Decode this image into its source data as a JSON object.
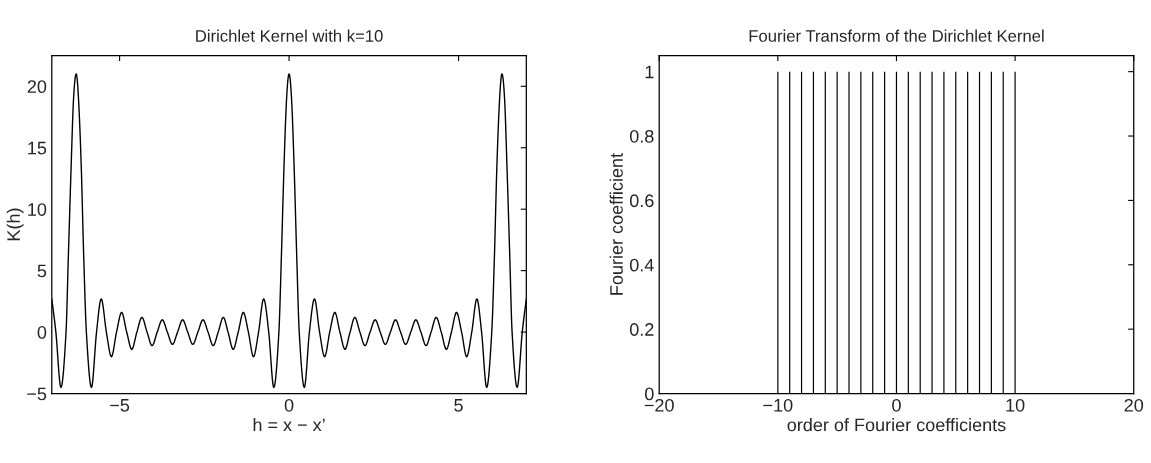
{
  "chart_data": [
    {
      "type": "line",
      "title": "Dirichlet Kernel with k=10",
      "xlabel": "h = x − x’",
      "ylabel": "K(h)",
      "xlim": [
        -7,
        7
      ],
      "ylim": [
        -5,
        22.5
      ],
      "xticks": [
        -5,
        0,
        5
      ],
      "yticks": [
        -5,
        0,
        5,
        10,
        15,
        20
      ],
      "grid": false,
      "legend": false,
      "series": [
        {
          "color": "#000000",
          "x": [
            -7,
            -6.88,
            -6.73,
            -6.58,
            -6.51,
            -6.43,
            -6.36,
            -6.28,
            -6.21,
            -6.13,
            -6.06,
            -5.98,
            -5.83,
            -5.68,
            -5.54,
            -5.39,
            -5.24,
            -5.09,
            -4.94,
            -4.79,
            -4.64,
            -4.49,
            -4.34,
            -4.19,
            -4.04,
            -3.89,
            -3.74,
            -3.59,
            -3.44,
            -3.29,
            -3.14,
            -2.99,
            -2.84,
            -2.69,
            -2.54,
            -2.39,
            -2.24,
            -2.09,
            -1.94,
            -1.8,
            -1.65,
            -1.5,
            -1.35,
            -1.2,
            -1.05,
            -0.9,
            -0.75,
            -0.6,
            -0.45,
            -0.3,
            -0.225,
            -0.15,
            -0.075,
            0,
            0.075,
            0.15,
            0.225,
            0.3,
            0.45,
            0.6,
            0.75,
            0.9,
            1.05,
            1.2,
            1.35,
            1.5,
            1.65,
            1.8,
            1.94,
            2.09,
            2.24,
            2.39,
            2.54,
            2.69,
            2.84,
            2.99,
            3.14,
            3.29,
            3.44,
            3.59,
            3.74,
            3.89,
            4.04,
            4.19,
            4.34,
            4.49,
            4.64,
            4.79,
            4.94,
            5.09,
            5.24,
            5.39,
            5.54,
            5.68,
            5.83,
            5.98,
            6.06,
            6.13,
            6.21,
            6.28,
            6.36,
            6.43,
            6.51,
            6.58,
            6.73,
            6.88,
            7
          ],
          "values": [
            2.7,
            0,
            -4.5,
            0,
            6.3,
            13.4,
            18.9,
            21,
            18.9,
            13.4,
            6.3,
            0,
            -4.5,
            0,
            2.7,
            0,
            -2.0,
            0,
            1.6,
            0,
            -1.4,
            0,
            1.2,
            0,
            -1.1,
            0,
            1.0,
            0,
            -1.0,
            0,
            1.0,
            0,
            -1.0,
            0,
            1.0,
            0,
            -1.1,
            0,
            1.2,
            0,
            -1.4,
            0,
            1.6,
            0,
            -2.0,
            0,
            2.7,
            0,
            -4.5,
            0,
            6.3,
            13.4,
            18.9,
            21,
            18.9,
            13.4,
            6.3,
            0,
            -4.5,
            0,
            2.7,
            0,
            -2.0,
            0,
            1.6,
            0,
            -1.4,
            0,
            1.2,
            0,
            -1.1,
            0,
            1.0,
            0,
            -1.0,
            0,
            1.0,
            0,
            -1.0,
            0,
            1.0,
            0,
            -1.1,
            0,
            1.2,
            0,
            -1.4,
            0,
            1.6,
            0,
            -2.0,
            0,
            2.7,
            0,
            -4.5,
            0,
            6.3,
            13.4,
            18.9,
            21,
            18.9,
            13.4,
            6.3,
            0,
            -4.5,
            0,
            2.7
          ]
        }
      ]
    },
    {
      "type": "bar",
      "title": "Fourier Transform of the Dirichlet Kernel",
      "xlabel": "order of Fourier coefficients",
      "ylabel": "Fourier coefficient",
      "xlim": [
        -20,
        20
      ],
      "ylim": [
        0,
        1.05
      ],
      "xticks": [
        -20,
        -10,
        0,
        10,
        20
      ],
      "yticks": [
        0,
        0.2,
        0.4,
        0.6,
        0.8,
        1
      ],
      "grid": false,
      "legend": false,
      "series": [
        {
          "color": "#000000",
          "x": [
            -10,
            -9,
            -8,
            -7,
            -6,
            -5,
            -4,
            -3,
            -2,
            -1,
            0,
            1,
            2,
            3,
            4,
            5,
            6,
            7,
            8,
            9,
            10
          ],
          "values": [
            1,
            1,
            1,
            1,
            1,
            1,
            1,
            1,
            1,
            1,
            1,
            1,
            1,
            1,
            1,
            1,
            1,
            1,
            1,
            1,
            1
          ]
        }
      ]
    }
  ]
}
